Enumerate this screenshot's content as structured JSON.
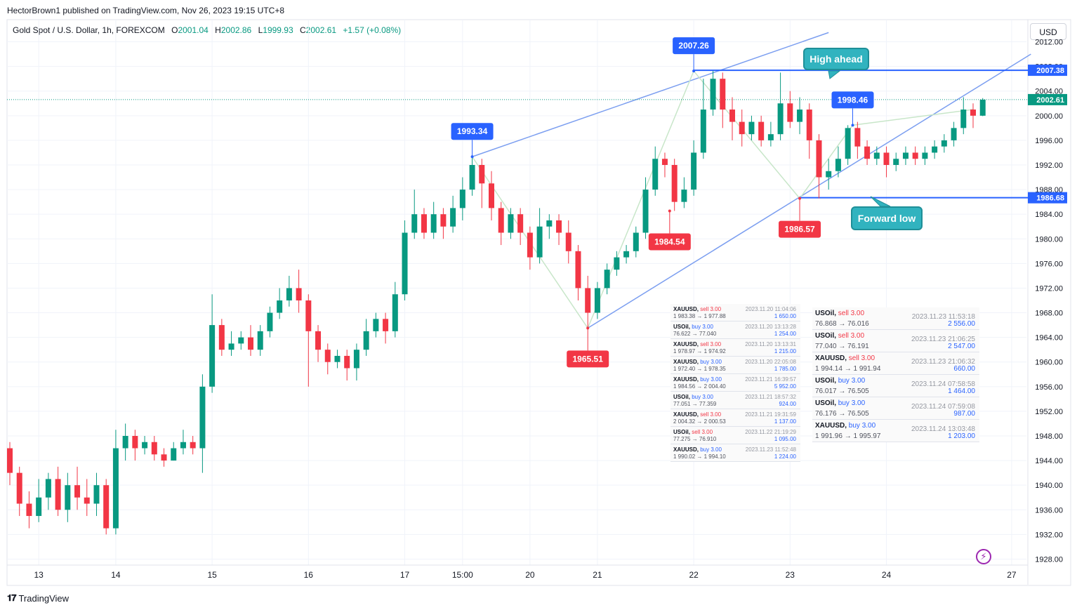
{
  "publisher": "HectorBrown1 published on TradingView.com, Nov 26, 2023 19:15 UTC+8",
  "symbol": {
    "name": "Gold Spot / U.S. Dollar, 1h, FOREXCOM",
    "o_label": "O",
    "o": "2001.04",
    "h_label": "H",
    "h": "2002.86",
    "l_label": "L",
    "l": "1999.93",
    "c_label": "C",
    "c": "2002.61",
    "change": "+1.57 (+0.08%)"
  },
  "currency": "USD",
  "footer": {
    "logo": "𝟏𝟕",
    "brand": "TradingView"
  },
  "colors": {
    "up": "#089981",
    "down": "#f23645",
    "line": "#7b9ef0",
    "level": "#2962ff",
    "callout": "#31b3bf"
  },
  "chart_data": {
    "type": "candlestick",
    "y_axis": {
      "min": 1926,
      "max": 2014,
      "ticks": [
        "2012.00",
        "2008.00",
        "2004.00",
        "2000.00",
        "1996.00",
        "1992.00",
        "1988.00",
        "1984.00",
        "1980.00",
        "1976.00",
        "1972.00",
        "1968.00",
        "1964.00",
        "1960.00",
        "1956.00",
        "1952.00",
        "1948.00",
        "1944.00",
        "1940.00",
        "1936.00",
        "1932.00",
        "1928.00"
      ]
    },
    "x_axis": {
      "ticks": [
        {
          "label": "13",
          "i": 3
        },
        {
          "label": "14",
          "i": 11
        },
        {
          "label": "15",
          "i": 21
        },
        {
          "label": "16",
          "i": 31
        },
        {
          "label": "17",
          "i": 41
        },
        {
          "label": "15:00",
          "i": 47
        },
        {
          "label": "20",
          "i": 54
        },
        {
          "label": "21",
          "i": 61
        },
        {
          "label": "22",
          "i": 71
        },
        {
          "label": "23",
          "i": 81
        },
        {
          "label": "24",
          "i": 91
        },
        {
          "label": "27",
          "i": 104
        }
      ]
    },
    "last_price": {
      "label": "2002.61",
      "value": 2002.61
    },
    "levels": [
      {
        "label": "2007.38",
        "value": 2007.38,
        "from_i": 71
      },
      {
        "label": "1986.68",
        "value": 1986.68,
        "from_i": 82
      }
    ],
    "swing_labels": [
      {
        "text": "1993.34",
        "i": 48,
        "value": 1993.34,
        "kind": "high"
      },
      {
        "text": "2007.26",
        "i": 71,
        "value": 2007.26,
        "kind": "high"
      },
      {
        "text": "1998.46",
        "i": 87.5,
        "value": 1998.46,
        "kind": "high"
      },
      {
        "text": "1965.51",
        "i": 60,
        "value": 1965.51,
        "kind": "low"
      },
      {
        "text": "1984.54",
        "i": 68.5,
        "value": 1984.54,
        "kind": "low"
      },
      {
        "text": "1986.57",
        "i": 82,
        "value": 1986.57,
        "kind": "low"
      }
    ],
    "trendlines": [
      {
        "p1": [
          48,
          1993.34
        ],
        "p2": [
          85,
          2013.5
        ]
      },
      {
        "p1": [
          60,
          1965.51
        ],
        "p2": [
          106,
          2010
        ]
      }
    ],
    "zigzag": [
      [
        48,
        1993.34
      ],
      [
        60,
        1965.51
      ],
      [
        71,
        2007.26
      ],
      [
        82,
        1986.57
      ],
      [
        87.5,
        1998.46
      ],
      [
        100,
        2001
      ]
    ],
    "callouts": [
      {
        "text": "High ahead"
      },
      {
        "text": "Forward low"
      }
    ],
    "candles": [
      [
        1946,
        1942,
        1947,
        1940
      ],
      [
        1942,
        1937,
        1943,
        1935
      ],
      [
        1937,
        1935,
        1939,
        1933
      ],
      [
        1935,
        1938,
        1941,
        1934
      ],
      [
        1938,
        1941,
        1942,
        1936
      ],
      [
        1941,
        1936,
        1943,
        1935
      ],
      [
        1936,
        1940,
        1942,
        1934
      ],
      [
        1940,
        1938,
        1943,
        1936
      ],
      [
        1938,
        1937,
        1941,
        1935
      ],
      [
        1937,
        1940,
        1942,
        1935
      ],
      [
        1940,
        1933,
        1941,
        1932
      ],
      [
        1933,
        1946,
        1949,
        1932
      ],
      [
        1946,
        1948,
        1950,
        1944
      ],
      [
        1948,
        1946,
        1949,
        1944
      ],
      [
        1946,
        1947,
        1948,
        1945
      ],
      [
        1947,
        1945,
        1948,
        1944
      ],
      [
        1945,
        1944,
        1946,
        1943
      ],
      [
        1944,
        1946,
        1947,
        1944
      ],
      [
        1946,
        1947,
        1949,
        1945
      ],
      [
        1947,
        1946,
        1948,
        1945
      ],
      [
        1946,
        1956,
        1958,
        1942
      ],
      [
        1956,
        1966,
        1971,
        1955
      ],
      [
        1966,
        1962,
        1967,
        1961
      ],
      [
        1962,
        1963,
        1965,
        1961
      ],
      [
        1963,
        1964,
        1965,
        1962
      ],
      [
        1964,
        1962,
        1966,
        1961
      ],
      [
        1962,
        1965,
        1966,
        1961
      ],
      [
        1965,
        1968,
        1969,
        1964
      ],
      [
        1968,
        1970,
        1972,
        1967
      ],
      [
        1970,
        1972,
        1974,
        1969
      ],
      [
        1972,
        1970,
        1975,
        1968
      ],
      [
        1970,
        1965,
        1971,
        1956
      ],
      [
        1965,
        1962,
        1966,
        1960
      ],
      [
        1962,
        1960,
        1963,
        1958
      ],
      [
        1960,
        1961,
        1962,
        1959
      ],
      [
        1961,
        1959,
        1962,
        1957
      ],
      [
        1959,
        1962,
        1963,
        1957
      ],
      [
        1962,
        1965,
        1967,
        1961
      ],
      [
        1965,
        1967,
        1968,
        1964
      ],
      [
        1967,
        1965,
        1968,
        1963
      ],
      [
        1965,
        1971,
        1973,
        1964
      ],
      [
        1971,
        1981,
        1983,
        1970
      ],
      [
        1981,
        1984,
        1988,
        1980
      ],
      [
        1984,
        1981,
        1985,
        1980
      ],
      [
        1981,
        1984,
        1986,
        1980
      ],
      [
        1984,
        1982,
        1985,
        1980
      ],
      [
        1982,
        1985,
        1987,
        1981
      ],
      [
        1985,
        1988,
        1990,
        1983
      ],
      [
        1988,
        1992,
        1993.34,
        1987
      ],
      [
        1992,
        1989,
        1993,
        1985
      ],
      [
        1989,
        1985,
        1991,
        1983
      ],
      [
        1985,
        1981,
        1986,
        1979
      ],
      [
        1981,
        1984,
        1985,
        1980
      ],
      [
        1984,
        1981,
        1985,
        1979
      ],
      [
        1981,
        1977,
        1982,
        1975
      ],
      [
        1977,
        1982,
        1985,
        1976
      ],
      [
        1982,
        1983,
        1984,
        1980
      ],
      [
        1983,
        1981,
        1984,
        1979
      ],
      [
        1981,
        1978,
        1983,
        1976
      ],
      [
        1978,
        1972,
        1979,
        1970
      ],
      [
        1972,
        1968,
        1974,
        1965.51
      ],
      [
        1968,
        1972,
        1973,
        1967
      ],
      [
        1972,
        1975,
        1976,
        1971
      ],
      [
        1975,
        1977,
        1978,
        1974
      ],
      [
        1977,
        1978,
        1979,
        1976
      ],
      [
        1978,
        1981,
        1982,
        1977
      ],
      [
        1981,
        1988,
        1990,
        1980
      ],
      [
        1988,
        1993,
        1995,
        1987
      ],
      [
        1993,
        1992,
        1994,
        1990
      ],
      [
        1992,
        1986,
        1993,
        1984.54
      ],
      [
        1986,
        1988,
        1990,
        1985
      ],
      [
        1988,
        1994,
        1996,
        1987
      ],
      [
        1994,
        2001,
        2006,
        1993
      ],
      [
        2001,
        2006,
        2007.26,
        2000
      ],
      [
        2006,
        2001,
        2007,
        1998
      ],
      [
        2001,
        1999,
        2003,
        1996
      ],
      [
        1999,
        1997,
        2001,
        1995
      ],
      [
        1997,
        1999,
        2000,
        1996
      ],
      [
        1999,
        1996,
        2000,
        1995
      ],
      [
        1996,
        1997,
        1999,
        1995
      ],
      [
        1997,
        2002,
        2007,
        1996
      ],
      [
        2002,
        1999,
        2004,
        1998
      ],
      [
        1999,
        2001,
        2003,
        1997
      ],
      [
        2001,
        1996,
        2002,
        1993
      ],
      [
        1996,
        1990,
        1997,
        1986.57
      ],
      [
        1990,
        1991,
        1993,
        1988
      ],
      [
        1991,
        1993,
        1995,
        1990
      ],
      [
        1993,
        1998,
        1998.46,
        1992
      ],
      [
        1998,
        1995,
        1999,
        1993
      ],
      [
        1995,
        1993,
        1996,
        1992
      ],
      [
        1993,
        1994,
        1995,
        1992
      ],
      [
        1994,
        1992,
        1995,
        1990
      ],
      [
        1992,
        1993,
        1994,
        1991
      ],
      [
        1993,
        1994,
        1995,
        1992
      ],
      [
        1994,
        1993,
        1995,
        1992
      ],
      [
        1993,
        1994,
        1995,
        1992
      ],
      [
        1994,
        1995,
        1996,
        1993
      ],
      [
        1995,
        1996,
        1997,
        1994
      ],
      [
        1996,
        1998,
        1999,
        1995
      ],
      [
        1998,
        2001,
        2003,
        1997
      ],
      [
        2001,
        2000,
        2002,
        1998
      ],
      [
        2000,
        2002.61,
        2002.86,
        1999.93
      ]
    ]
  },
  "trade_table_small": [
    {
      "sym": "XAUUSD,",
      "act": "sell",
      "lots": "3.00",
      "prices": "1 983.38 → 1 977.88",
      "time": "2023.11.20 11:04:06",
      "profit": "1 650.00"
    },
    {
      "sym": "USOil,",
      "act": "buy",
      "lots": "3.00",
      "prices": "76.622 → 77.040",
      "time": "2023.11.20 13:13:28",
      "profit": "1 254.00"
    },
    {
      "sym": "XAUUSD,",
      "act": "sell",
      "lots": "3.00",
      "prices": "1 978.97 → 1 974.92",
      "time": "2023.11.20 13:13:31",
      "profit": "1 215.00"
    },
    {
      "sym": "XAUUSD,",
      "act": "buy",
      "lots": "3.00",
      "prices": "1 972.40 → 1 978.35",
      "time": "2023.11.20 22:05:08",
      "profit": "1 785.00"
    },
    {
      "sym": "XAUUSD,",
      "act": "buy",
      "lots": "3.00",
      "prices": "1 984.56 → 2 004.40",
      "time": "2023.11.21 16:39:57",
      "profit": "5 952.00"
    },
    {
      "sym": "USOil,",
      "act": "buy",
      "lots": "3.00",
      "prices": "77.051 → 77.359",
      "time": "2023.11.21 18:57:32",
      "profit": "924.00"
    },
    {
      "sym": "XAUUSD,",
      "act": "sell",
      "lots": "3.00",
      "prices": "2 004.32 → 2 000.53",
      "time": "2023.11.21 19:31:59",
      "profit": "1 137.00"
    },
    {
      "sym": "USOil,",
      "act": "sell",
      "lots": "3.00",
      "prices": "77.275 → 76.910",
      "time": "2023.11.22 21:19:29",
      "profit": "1 095.00"
    },
    {
      "sym": "XAUUSD,",
      "act": "buy",
      "lots": "3.00",
      "prices": "1 990.02 → 1 994.10",
      "time": "2023.11.23 11:52:48",
      "profit": "1 224.00"
    }
  ],
  "trade_table_big": [
    {
      "sym": "USOil,",
      "act": "sell",
      "lots": "3.00",
      "prices": "76.868 → 76.016",
      "time": "2023.11.23 11:53:18",
      "profit": "2 556.00"
    },
    {
      "sym": "USOil,",
      "act": "sell",
      "lots": "3.00",
      "prices": "77.040 → 76.191",
      "time": "2023.11.23 21:06:25",
      "profit": "2 547.00"
    },
    {
      "sym": "XAUUSD,",
      "act": "sell",
      "lots": "3.00",
      "prices": "1 994.14 → 1 991.94",
      "time": "2023.11.23 21:06:32",
      "profit": "660.00"
    },
    {
      "sym": "USOil,",
      "act": "buy",
      "lots": "3.00",
      "prices": "76.017 → 76.505",
      "time": "2023.11.24 07:58:58",
      "profit": "1 464.00"
    },
    {
      "sym": "USOil,",
      "act": "buy",
      "lots": "3.00",
      "prices": "76.176 → 76.505",
      "time": "2023.11.24 07:59:08",
      "profit": "987.00"
    },
    {
      "sym": "XAUUSD,",
      "act": "buy",
      "lots": "3.00",
      "prices": "1 991.96 → 1 995.97",
      "time": "2023.11.24 13:03:48",
      "profit": "1 203.00"
    }
  ]
}
